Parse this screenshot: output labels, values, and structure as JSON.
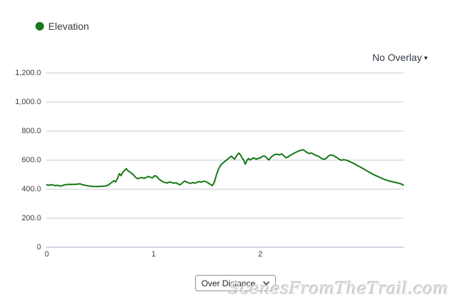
{
  "legend": {
    "label": "Elevation",
    "color": "#157815"
  },
  "overlay_dropdown": {
    "label": "No Overlay",
    "caret": "▾"
  },
  "mode_select": {
    "value": "Over Distance"
  },
  "watermark": "ScenesFromTheTrail.com",
  "chart_data": {
    "type": "line",
    "title": "",
    "xlabel": "",
    "ylabel": "",
    "legend_entries": [
      "Elevation"
    ],
    "legend_position": "top-left",
    "grid": "horizontal-only",
    "xlim": [
      0,
      3.35
    ],
    "ylim": [
      0,
      1200
    ],
    "x_ticks": [
      0,
      1,
      2
    ],
    "y_ticks": [
      {
        "value": 1200,
        "label": "1,200.0"
      },
      {
        "value": 1000,
        "label": "1,000.0"
      },
      {
        "value": 800,
        "label": "800.0"
      },
      {
        "value": 600,
        "label": "600.0"
      },
      {
        "value": 400,
        "label": "400.0"
      },
      {
        "value": 200,
        "label": "200.0"
      },
      {
        "value": 0,
        "label": "0"
      }
    ],
    "series": [
      {
        "name": "Elevation",
        "color": "#157815",
        "points": [
          [
            0,
            430
          ],
          [
            0.02,
            427
          ],
          [
            0.04,
            431
          ],
          [
            0.06,
            429
          ],
          [
            0.08,
            424
          ],
          [
            0.1,
            427
          ],
          [
            0.13,
            421
          ],
          [
            0.16,
            429
          ],
          [
            0.19,
            432
          ],
          [
            0.22,
            433
          ],
          [
            0.25,
            432
          ],
          [
            0.28,
            434
          ],
          [
            0.31,
            437
          ],
          [
            0.34,
            430
          ],
          [
            0.37,
            425
          ],
          [
            0.4,
            421
          ],
          [
            0.43,
            419
          ],
          [
            0.46,
            418
          ],
          [
            0.49,
            419
          ],
          [
            0.52,
            420
          ],
          [
            0.55,
            422
          ],
          [
            0.58,
            430
          ],
          [
            0.6,
            443
          ],
          [
            0.62,
            452
          ],
          [
            0.63,
            459
          ],
          [
            0.645,
            450
          ],
          [
            0.66,
            470
          ],
          [
            0.68,
            507
          ],
          [
            0.695,
            493
          ],
          [
            0.71,
            515
          ],
          [
            0.73,
            530
          ],
          [
            0.745,
            541
          ],
          [
            0.76,
            528
          ],
          [
            0.775,
            520
          ],
          [
            0.79,
            512
          ],
          [
            0.81,
            500
          ],
          [
            0.83,
            483
          ],
          [
            0.85,
            472
          ],
          [
            0.87,
            477
          ],
          [
            0.89,
            480
          ],
          [
            0.91,
            474
          ],
          [
            0.93,
            480
          ],
          [
            0.95,
            488
          ],
          [
            0.97,
            482
          ],
          [
            0.99,
            478
          ],
          [
            1.01,
            493
          ],
          [
            1.03,
            488
          ],
          [
            1.05,
            470
          ],
          [
            1.07,
            460
          ],
          [
            1.09,
            450
          ],
          [
            1.11,
            446
          ],
          [
            1.13,
            442
          ],
          [
            1.15,
            450
          ],
          [
            1.17,
            446
          ],
          [
            1.19,
            441
          ],
          [
            1.21,
            445
          ],
          [
            1.23,
            436
          ],
          [
            1.25,
            430
          ],
          [
            1.27,
            443
          ],
          [
            1.29,
            456
          ],
          [
            1.31,
            450
          ],
          [
            1.33,
            443
          ],
          [
            1.35,
            440
          ],
          [
            1.37,
            446
          ],
          [
            1.39,
            441
          ],
          [
            1.41,
            448
          ],
          [
            1.43,
            452
          ],
          [
            1.45,
            449
          ],
          [
            1.47,
            455
          ],
          [
            1.49,
            451
          ],
          [
            1.51,
            444
          ],
          [
            1.53,
            434
          ],
          [
            1.55,
            425
          ],
          [
            1.57,
            448
          ],
          [
            1.59,
            500
          ],
          [
            1.61,
            540
          ],
          [
            1.63,
            566
          ],
          [
            1.65,
            580
          ],
          [
            1.67,
            592
          ],
          [
            1.69,
            603
          ],
          [
            1.71,
            617
          ],
          [
            1.73,
            627
          ],
          [
            1.745,
            616
          ],
          [
            1.76,
            607
          ],
          [
            1.78,
            632
          ],
          [
            1.8,
            649
          ],
          [
            1.815,
            635
          ],
          [
            1.83,
            615
          ],
          [
            1.845,
            600
          ],
          [
            1.86,
            572
          ],
          [
            1.875,
            598
          ],
          [
            1.89,
            611
          ],
          [
            1.905,
            601
          ],
          [
            1.92,
            608
          ],
          [
            1.935,
            616
          ],
          [
            1.95,
            611
          ],
          [
            1.965,
            606
          ],
          [
            1.98,
            612
          ],
          [
            2,
            615
          ],
          [
            2.02,
            626
          ],
          [
            2.04,
            629
          ],
          [
            2.06,
            616
          ],
          [
            2.08,
            601
          ],
          [
            2.1,
            619
          ],
          [
            2.12,
            632
          ],
          [
            2.14,
            639
          ],
          [
            2.16,
            641
          ],
          [
            2.18,
            636
          ],
          [
            2.2,
            643
          ],
          [
            2.22,
            631
          ],
          [
            2.24,
            616
          ],
          [
            2.26,
            621
          ],
          [
            2.28,
            633
          ],
          [
            2.3,
            641
          ],
          [
            2.32,
            649
          ],
          [
            2.34,
            656
          ],
          [
            2.36,
            663
          ],
          [
            2.38,
            668
          ],
          [
            2.4,
            671
          ],
          [
            2.42,
            663
          ],
          [
            2.44,
            651
          ],
          [
            2.46,
            646
          ],
          [
            2.48,
            649
          ],
          [
            2.5,
            641
          ],
          [
            2.52,
            633
          ],
          [
            2.54,
            629
          ],
          [
            2.56,
            619
          ],
          [
            2.58,
            609
          ],
          [
            2.6,
            606
          ],
          [
            2.62,
            613
          ],
          [
            2.64,
            629
          ],
          [
            2.66,
            636
          ],
          [
            2.68,
            633
          ],
          [
            2.7,
            626
          ],
          [
            2.72,
            616
          ],
          [
            2.74,
            606
          ],
          [
            2.76,
            599
          ],
          [
            2.78,
            603
          ],
          [
            2.8,
            601
          ],
          [
            2.82,
            596
          ],
          [
            2.85,
            586
          ],
          [
            2.88,
            576
          ],
          [
            2.91,
            563
          ],
          [
            2.94,
            551
          ],
          [
            2.97,
            539
          ],
          [
            3,
            526
          ],
          [
            3.03,
            513
          ],
          [
            3.06,
            501
          ],
          [
            3.09,
            491
          ],
          [
            3.12,
            481
          ],
          [
            3.15,
            471
          ],
          [
            3.18,
            463
          ],
          [
            3.21,
            456
          ],
          [
            3.24,
            451
          ],
          [
            3.27,
            446
          ],
          [
            3.3,
            441
          ],
          [
            3.33,
            433
          ],
          [
            3.34,
            428
          ]
        ]
      }
    ]
  },
  "colors": {
    "grid_line": "#c6cbd2",
    "axis_line": "#9fafc2",
    "tick_text": "#3c3c3c",
    "series_green": "#157815"
  }
}
